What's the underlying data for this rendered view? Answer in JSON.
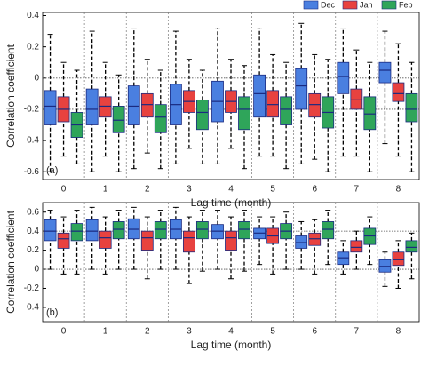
{
  "chart_data": [
    {
      "type": "box",
      "panel_label": "(a)",
      "ylabel": "Correlation coefficient",
      "xlabel": "Lag time (month)",
      "categories": [
        "0",
        "1",
        "2",
        "3",
        "4",
        "5",
        "6",
        "7",
        "8"
      ],
      "ylim": [
        -0.65,
        0.42
      ],
      "yticks": [
        -0.6,
        -0.4,
        -0.2,
        0,
        0.2,
        0.4
      ],
      "ref_lines": [
        0,
        -0.2
      ],
      "series": [
        {
          "name": "Dec",
          "color": "#4a7fe0",
          "values": [
            [
              -0.6,
              -0.3,
              -0.18,
              -0.08,
              0.28
            ],
            [
              -0.6,
              -0.3,
              -0.2,
              -0.07,
              0.3
            ],
            [
              -0.58,
              -0.3,
              -0.18,
              -0.05,
              0.32
            ],
            [
              -0.55,
              -0.3,
              -0.17,
              -0.04,
              0.3
            ],
            [
              -0.55,
              -0.28,
              -0.15,
              -0.02,
              0.32
            ],
            [
              -0.5,
              -0.25,
              -0.1,
              0.02,
              0.32
            ],
            [
              -0.55,
              -0.2,
              -0.05,
              0.06,
              0.35
            ],
            [
              -0.5,
              -0.1,
              0.01,
              0.1,
              0.32
            ],
            [
              -0.42,
              -0.03,
              0.05,
              0.1,
              0.3
            ]
          ]
        },
        {
          "name": "Jan",
          "color": "#e8423f",
          "values": [
            [
              -0.5,
              -0.28,
              -0.2,
              -0.12,
              0.1
            ],
            [
              -0.5,
              -0.25,
              -0.18,
              -0.12,
              0.1
            ],
            [
              -0.48,
              -0.25,
              -0.17,
              -0.1,
              0.12
            ],
            [
              -0.45,
              -0.22,
              -0.15,
              -0.08,
              0.12
            ],
            [
              -0.45,
              -0.22,
              -0.15,
              -0.08,
              0.12
            ],
            [
              -0.5,
              -0.25,
              -0.17,
              -0.08,
              0.15
            ],
            [
              -0.52,
              -0.25,
              -0.17,
              -0.1,
              0.15
            ],
            [
              -0.5,
              -0.2,
              -0.14,
              -0.07,
              0.18
            ],
            [
              -0.5,
              -0.15,
              -0.1,
              -0.03,
              0.22
            ]
          ]
        },
        {
          "name": "Feb",
          "color": "#2fa55a",
          "values": [
            [
              -0.55,
              -0.38,
              -0.3,
              -0.22,
              0.05
            ],
            [
              -0.6,
              -0.35,
              -0.27,
              -0.18,
              0.02
            ],
            [
              -0.58,
              -0.35,
              -0.25,
              -0.17,
              0.05
            ],
            [
              -0.55,
              -0.33,
              -0.22,
              -0.14,
              0.05
            ],
            [
              -0.58,
              -0.33,
              -0.2,
              -0.12,
              0.08
            ],
            [
              -0.58,
              -0.3,
              -0.2,
              -0.12,
              0.1
            ],
            [
              -0.6,
              -0.32,
              -0.22,
              -0.12,
              0.12
            ],
            [
              -0.6,
              -0.33,
              -0.23,
              -0.12,
              0.1
            ],
            [
              -0.6,
              -0.28,
              -0.2,
              -0.1,
              0.1
            ]
          ]
        }
      ]
    },
    {
      "type": "box",
      "panel_label": "(b)",
      "ylabel": "Correlation coefficient",
      "xlabel": "Lag time (month)",
      "categories": [
        "0",
        "1",
        "2",
        "3",
        "4",
        "5",
        "6",
        "7",
        "8"
      ],
      "ylim": [
        -0.55,
        0.7
      ],
      "yticks": [
        -0.4,
        -0.2,
        0,
        0.2,
        0.4,
        0.6
      ],
      "ref_lines": [
        0.4,
        0
      ],
      "series": [
        {
          "color": "#4a7fe0",
          "values": [
            [
              0,
              0.3,
              0.4,
              0.52,
              0.62
            ],
            [
              0,
              0.3,
              0.4,
              0.52,
              0.65
            ],
            [
              0,
              0.32,
              0.42,
              0.53,
              0.65
            ],
            [
              0,
              0.32,
              0.42,
              0.52,
              0.65
            ],
            [
              0,
              0.32,
              0.4,
              0.47,
              0.62
            ],
            [
              0.05,
              0.32,
              0.38,
              0.43,
              0.55
            ],
            [
              0,
              0.22,
              0.28,
              0.35,
              0.5
            ],
            [
              -0.05,
              0.05,
              0.12,
              0.18,
              0.3
            ],
            [
              -0.18,
              -0.03,
              0.03,
              0.1,
              0.18
            ]
          ]
        },
        {
          "color": "#e8423f",
          "values": [
            [
              -0.05,
              0.22,
              0.32,
              0.38,
              0.55
            ],
            [
              -0.05,
              0.22,
              0.33,
              0.4,
              0.55
            ],
            [
              -0.1,
              0.2,
              0.33,
              0.4,
              0.55
            ],
            [
              -0.15,
              0.18,
              0.33,
              0.4,
              0.55
            ],
            [
              -0.1,
              0.2,
              0.33,
              0.4,
              0.55
            ],
            [
              -0.05,
              0.27,
              0.35,
              0.43,
              0.55
            ],
            [
              -0.05,
              0.25,
              0.32,
              0.38,
              0.52
            ],
            [
              0,
              0.18,
              0.23,
              0.3,
              0.4
            ],
            [
              -0.2,
              0.04,
              0.1,
              0.18,
              0.3
            ]
          ]
        },
        {
          "color": "#2fa55a",
          "values": [
            [
              -0.05,
              0.3,
              0.4,
              0.48,
              0.62
            ],
            [
              0,
              0.32,
              0.42,
              0.5,
              0.62
            ],
            [
              0,
              0.32,
              0.42,
              0.5,
              0.62
            ],
            [
              -0.02,
              0.32,
              0.42,
              0.5,
              0.62
            ],
            [
              -0.02,
              0.32,
              0.42,
              0.5,
              0.62
            ],
            [
              0,
              0.32,
              0.4,
              0.48,
              0.6
            ],
            [
              0.05,
              0.32,
              0.42,
              0.5,
              0.62
            ],
            [
              0.05,
              0.26,
              0.35,
              0.43,
              0.55
            ],
            [
              -0.1,
              0.18,
              0.23,
              0.3,
              0.38
            ]
          ]
        }
      ]
    }
  ]
}
